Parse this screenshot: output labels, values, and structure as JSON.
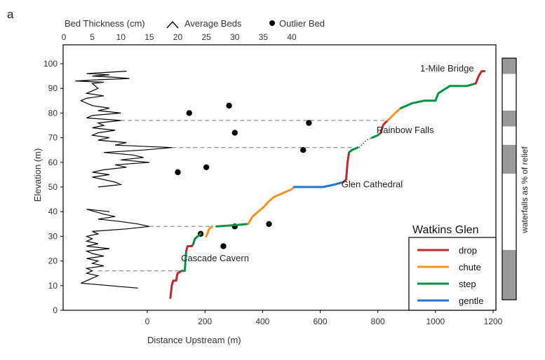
{
  "chart_data": {
    "type": "line",
    "panel_label": "a",
    "title": "Watkins Glen",
    "xlabel": "Distance Upstream (m)",
    "ylabel": "Elevation (m)",
    "top_xlabel": "Bed Thickness (cm)",
    "right_label": "waterfalls as % of relief",
    "xlim": [
      -300,
      1200
    ],
    "ylim": [
      0,
      107
    ],
    "x_ticks": [
      0,
      200,
      400,
      600,
      800,
      1000,
      1200
    ],
    "y_ticks": [
      0,
      10,
      20,
      30,
      40,
      50,
      60,
      70,
      80,
      90,
      100
    ],
    "top_xlim": [
      0,
      45
    ],
    "top_x_ticks": [
      0,
      5,
      10,
      15,
      20,
      25,
      30,
      35,
      40
    ],
    "legend_top": [
      {
        "name": "Average Beds",
        "marker": "line"
      },
      {
        "name": "Outlier Bed",
        "marker": "dot"
      }
    ],
    "legend_classes": [
      {
        "name": "drop",
        "color": "#c1272d"
      },
      {
        "name": "chute",
        "color": "#f7931e"
      },
      {
        "name": "step",
        "color": "#009245"
      },
      {
        "name": "gentle",
        "color": "#1f78c8"
      }
    ],
    "annotations": [
      {
        "text": "1-Mile Bridge",
        "x": 1040,
        "y": 98
      },
      {
        "text": "Rainbow Falls",
        "x": 895,
        "y": 73
      },
      {
        "text": "Glen Cathedral",
        "x": 780,
        "y": 51
      },
      {
        "text": "Cascade Cavern",
        "x": 235,
        "y": 21
      }
    ],
    "profile": [
      {
        "class": "drop",
        "points": [
          [
            80,
            5
          ],
          [
            85,
            10
          ],
          [
            90,
            12
          ],
          [
            100,
            12
          ],
          [
            105,
            15
          ],
          [
            120,
            16
          ]
        ]
      },
      {
        "class": "step",
        "points": [
          [
            120,
            16
          ],
          [
            130,
            16
          ],
          [
            135,
            24
          ]
        ]
      },
      {
        "class": "drop",
        "points": [
          [
            135,
            24
          ],
          [
            140,
            26
          ],
          [
            155,
            26
          ],
          [
            160,
            27
          ]
        ]
      },
      {
        "class": "step",
        "points": [
          [
            160,
            27
          ],
          [
            165,
            29
          ],
          [
            175,
            30
          ],
          [
            185,
            31
          ]
        ]
      },
      {
        "class": "chute",
        "points": [
          [
            205,
            30
          ],
          [
            215,
            33
          ],
          [
            225,
            34
          ]
        ]
      },
      {
        "class": "step",
        "points": [
          [
            240,
            34
          ],
          [
            300,
            34.5
          ],
          [
            350,
            35
          ]
        ]
      },
      {
        "class": "chute",
        "points": [
          [
            350,
            35
          ],
          [
            365,
            38
          ],
          [
            385,
            40
          ],
          [
            405,
            42
          ],
          [
            420,
            44
          ],
          [
            440,
            46
          ],
          [
            460,
            47
          ],
          [
            480,
            48
          ],
          [
            500,
            49
          ],
          [
            510,
            50
          ]
        ]
      },
      {
        "class": "gentle",
        "points": [
          [
            510,
            50
          ],
          [
            560,
            50
          ],
          [
            610,
            50
          ],
          [
            650,
            51
          ],
          [
            680,
            52
          ]
        ]
      },
      {
        "class": "drop",
        "points": [
          [
            680,
            52
          ],
          [
            690,
            53
          ],
          [
            695,
            60
          ],
          [
            700,
            64
          ]
        ]
      },
      {
        "class": "step",
        "points": [
          [
            700,
            64
          ],
          [
            710,
            65
          ],
          [
            730,
            66
          ]
        ]
      },
      {
        "class": "dots",
        "points": [
          [
            735,
            66
          ],
          [
            760,
            69
          ],
          [
            780,
            70
          ]
        ]
      },
      {
        "class": "step",
        "points": [
          [
            780,
            70
          ],
          [
            800,
            71
          ],
          [
            810,
            72
          ]
        ]
      },
      {
        "class": "drop",
        "points": [
          [
            810,
            72
          ],
          [
            818,
            75
          ],
          [
            825,
            76
          ],
          [
            835,
            77
          ]
        ]
      },
      {
        "class": "chute",
        "points": [
          [
            835,
            77
          ],
          [
            860,
            80
          ],
          [
            880,
            82
          ]
        ]
      },
      {
        "class": "step",
        "points": [
          [
            880,
            82
          ],
          [
            920,
            84
          ],
          [
            960,
            85
          ],
          [
            1000,
            85
          ],
          [
            1010,
            88
          ],
          [
            1050,
            91
          ]
        ]
      },
      {
        "class": "step",
        "points": [
          [
            1050,
            91
          ],
          [
            1110,
            91
          ],
          [
            1140,
            92
          ]
        ]
      },
      {
        "class": "drop",
        "points": [
          [
            1140,
            92
          ],
          [
            1150,
            95
          ],
          [
            1160,
            97
          ],
          [
            1170,
            97
          ]
        ]
      }
    ],
    "bed_thickness": [
      [
        11,
        97
      ],
      [
        4,
        96
      ],
      [
        8,
        95.5
      ],
      [
        5,
        95
      ],
      [
        9,
        94.5
      ],
      [
        11.5,
        94
      ],
      [
        6,
        93.5
      ],
      [
        2,
        93
      ],
      [
        7,
        92.5
      ],
      [
        5,
        92
      ],
      [
        6,
        90
      ],
      [
        4,
        88
      ],
      [
        7,
        87
      ],
      [
        4,
        86
      ],
      [
        3,
        85
      ],
      [
        4,
        84
      ],
      [
        5,
        83
      ],
      [
        8,
        82
      ],
      [
        6,
        81
      ],
      [
        10,
        80
      ],
      [
        5,
        79
      ],
      [
        4,
        78
      ],
      [
        10,
        77
      ],
      [
        6,
        76
      ],
      [
        7,
        75
      ],
      [
        5,
        74
      ],
      [
        9,
        73
      ],
      [
        6,
        72
      ],
      [
        5,
        71
      ],
      [
        8,
        70
      ],
      [
        6,
        69
      ],
      [
        11,
        68
      ],
      [
        9,
        67
      ],
      [
        19,
        66
      ],
      [
        14,
        65
      ],
      [
        7,
        64
      ],
      [
        12,
        63
      ],
      [
        14,
        62
      ],
      [
        10,
        61
      ],
      [
        15,
        60
      ],
      [
        9,
        59
      ],
      [
        11,
        58
      ],
      [
        7,
        57
      ],
      [
        5,
        56
      ],
      [
        8,
        55
      ],
      [
        5,
        54
      ],
      [
        7,
        53
      ],
      [
        9,
        52
      ],
      [
        10,
        51
      ],
      [
        6,
        50
      ],
      [
        8,
        40
      ],
      [
        4,
        41
      ],
      [
        7,
        39
      ],
      [
        9,
        38
      ],
      [
        6,
        37
      ],
      [
        10,
        36
      ],
      [
        13,
        35
      ],
      [
        15,
        34
      ],
      [
        11,
        33
      ],
      [
        5,
        32
      ],
      [
        6,
        31
      ],
      [
        4,
        30
      ],
      [
        5,
        29
      ],
      [
        4,
        28
      ],
      [
        6,
        27
      ],
      [
        4,
        26
      ],
      [
        8,
        25
      ],
      [
        4,
        24
      ],
      [
        5,
        23
      ],
      [
        7,
        22
      ],
      [
        4,
        21
      ],
      [
        6,
        20
      ],
      [
        5,
        19
      ],
      [
        7,
        18
      ],
      [
        4,
        17
      ],
      [
        5,
        16
      ],
      [
        4,
        15
      ],
      [
        6,
        14
      ],
      [
        5,
        13
      ],
      [
        4,
        12
      ],
      [
        3,
        11
      ],
      [
        8,
        10
      ],
      [
        13,
        9
      ]
    ],
    "outlier_beds": [
      [
        22,
        80
      ],
      [
        29,
        83
      ],
      [
        30,
        72
      ],
      [
        43,
        76
      ],
      [
        42,
        65
      ],
      [
        20,
        56
      ],
      [
        25,
        58
      ],
      [
        24,
        31
      ],
      [
        28,
        26
      ],
      [
        30,
        34
      ],
      [
        36,
        35
      ]
    ],
    "correlation_lines": [
      {
        "bed_x": 10,
        "dist_x": 830,
        "y": 77
      },
      {
        "bed_x": 19,
        "dist_x": 720,
        "y": 66
      },
      {
        "bed_x": 15,
        "dist_x": 225,
        "y": 34
      },
      {
        "bed_x": 6,
        "dist_x": 130,
        "y": 16
      }
    ],
    "relief_bar": [
      {
        "from": 5,
        "to": 24,
        "fill": "gray"
      },
      {
        "from": 24,
        "to": 53,
        "fill": "white"
      },
      {
        "from": 53,
        "to": 64,
        "fill": "gray"
      },
      {
        "from": 64,
        "to": 71,
        "fill": "white"
      },
      {
        "from": 71,
        "to": 77,
        "fill": "gray"
      },
      {
        "from": 77,
        "to": 91,
        "fill": "white"
      },
      {
        "from": 91,
        "to": 97,
        "fill": "gray"
      }
    ]
  }
}
